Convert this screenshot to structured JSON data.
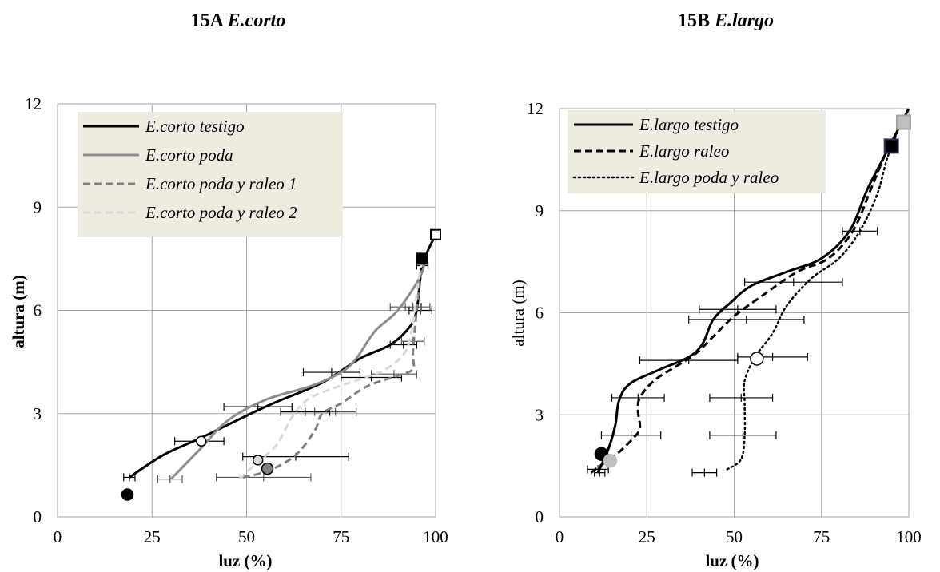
{
  "chart_data": [
    {
      "type": "line",
      "title_prefix": "15A",
      "title_species": "E.corto",
      "xlabel": "luz (%)",
      "ylabel": "altura (m)",
      "xlim": [
        0,
        100
      ],
      "ylim": [
        0,
        12
      ],
      "xticks": [
        "0",
        "25",
        "50",
        "75",
        "100"
      ],
      "yticks": [
        "0",
        "3",
        "6",
        "9",
        "12"
      ],
      "grid": true,
      "legend_position": "top-left",
      "series": [
        {
          "name": "E.corto testigo",
          "color": "#000000",
          "dash": "solid",
          "width": 3,
          "line": [
            [
              19,
              1.15
            ],
            [
              28,
              1.8
            ],
            [
              38,
              2.3
            ],
            [
              55,
              3.2
            ],
            [
              70,
              3.9
            ],
            [
              80,
              4.6
            ],
            [
              88,
              5.0
            ],
            [
              93,
              5.5
            ],
            [
              95,
              6.0
            ],
            [
              96.5,
              7.3
            ],
            [
              100,
              8.2
            ]
          ],
          "points": [
            {
              "x": 18.5,
              "y": 0.65,
              "marker": "circle",
              "fill": "#000000",
              "stroke": "#000000",
              "r": 7
            },
            {
              "x": 38,
              "y": 2.2,
              "marker": "circle",
              "fill": "#ffffff",
              "stroke": "#000000",
              "r": 6
            },
            {
              "x": 96.5,
              "y": 7.5,
              "marker": "square",
              "fill": "#000000",
              "stroke": "#000000",
              "size": 13
            },
            {
              "x": 100,
              "y": 8.2,
              "marker": "square",
              "fill": "#ffffff",
              "stroke": "#000000",
              "size": 12
            }
          ],
          "errorbars": [
            {
              "y": 1.15,
              "xmin": 17.5,
              "xmax": 20.5
            },
            {
              "y": 2.2,
              "xmin": 31,
              "xmax": 44
            },
            {
              "y": 3.2,
              "xmin": 44,
              "xmax": 62
            },
            {
              "y": 4.2,
              "xmin": 65,
              "xmax": 80
            },
            {
              "y": 5.0,
              "xmin": 88,
              "xmax": 95
            },
            {
              "y": 6.0,
              "xmin": 93,
              "xmax": 99
            },
            {
              "y": 7.3,
              "xmin": 95,
              "xmax": 98
            }
          ]
        },
        {
          "name": "E.corto poda",
          "color": "#8c8c8c",
          "dash": "solid",
          "width": 3,
          "line": [
            [
              30,
              1.1
            ],
            [
              38,
              2.0
            ],
            [
              45,
              2.8
            ],
            [
              55,
              3.4
            ],
            [
              67,
              3.8
            ],
            [
              75,
              4.2
            ],
            [
              79,
              4.6
            ],
            [
              84,
              5.4
            ],
            [
              90,
              6.0
            ],
            [
              96,
              7.0
            ],
            [
              97.5,
              7.6
            ]
          ],
          "points": [],
          "errorbars": [
            {
              "y": 1.1,
              "xmin": 26.5,
              "xmax": 33
            },
            {
              "y": 6.1,
              "xmin": 88,
              "xmax": 96
            }
          ]
        },
        {
          "name": "E.corto poda y raleo 1",
          "color": "#808080",
          "dash": "dashed",
          "width": 3,
          "line": [
            [
              49,
              1.15
            ],
            [
              56,
              1.35
            ],
            [
              63,
              1.8
            ],
            [
              68,
              2.5
            ],
            [
              70,
              3.0
            ],
            [
              75,
              3.3
            ],
            [
              82,
              3.8
            ],
            [
              90,
              4.1
            ],
            [
              94,
              4.3
            ],
            [
              94,
              4.8
            ],
            [
              95,
              6.0
            ],
            [
              96,
              7.0
            ],
            [
              97,
              7.6
            ]
          ],
          "points": [
            {
              "x": 55.5,
              "y": 1.4,
              "marker": "circle",
              "fill": "#808080",
              "stroke": "#000000",
              "r": 7
            }
          ],
          "errorbars": [
            {
              "y": 1.15,
              "xmin": 42,
              "xmax": 67
            },
            {
              "y": 3.05,
              "xmin": 68,
              "xmax": 79
            },
            {
              "y": 4.15,
              "xmin": 83,
              "xmax": 95
            },
            {
              "y": 5.1,
              "xmin": 91,
              "xmax": 97
            },
            {
              "y": 6.1,
              "xmin": 94,
              "xmax": 98.5
            }
          ]
        },
        {
          "name": "E.corto poda y raleo 2",
          "color": "#d9d9d9",
          "dash": "dashed",
          "width": 3,
          "line": [
            [
              48,
              1.1
            ],
            [
              53,
              1.6
            ],
            [
              58,
              2.1
            ],
            [
              62,
              2.9
            ],
            [
              66,
              3.4
            ],
            [
              72,
              3.7
            ],
            [
              80,
              4.0
            ],
            [
              87,
              4.3
            ],
            [
              92,
              4.8
            ],
            [
              94,
              5.6
            ],
            [
              95,
              6.5
            ],
            [
              96,
              7.2
            ],
            [
              97,
              7.6
            ]
          ],
          "points": [
            {
              "x": 53,
              "y": 1.65,
              "marker": "circle",
              "fill": "#d9d9d9",
              "stroke": "#000000",
              "r": 6
            }
          ],
          "errorbars": [
            {
              "y": 1.75,
              "xmin": 49,
              "xmax": 77
            },
            {
              "y": 3.05,
              "xmin": 59,
              "xmax": 72
            },
            {
              "y": 4.05,
              "xmin": 75,
              "xmax": 91
            }
          ]
        }
      ]
    },
    {
      "type": "line",
      "title_prefix": "15B",
      "title_species": "E.largo",
      "xlabel": "luz (%)",
      "ylabel": "altura (m)",
      "xlim": [
        0,
        100
      ],
      "ylim": [
        0,
        12
      ],
      "xticks": [
        "0",
        "25",
        "50",
        "75",
        "100"
      ],
      "yticks": [
        "0",
        "3",
        "6",
        "9",
        "12"
      ],
      "grid": true,
      "legend_position": "top-left",
      "series": [
        {
          "name": "E.largo testigo",
          "color": "#000000",
          "dash": "solid",
          "width": 3,
          "line": [
            [
              11,
              1.3
            ],
            [
              14,
              2.0
            ],
            [
              16,
              2.7
            ],
            [
              17,
              3.4
            ],
            [
              20,
              3.9
            ],
            [
              28,
              4.3
            ],
            [
              37,
              4.7
            ],
            [
              41,
              5.1
            ],
            [
              44,
              5.8
            ],
            [
              49,
              6.3
            ],
            [
              55,
              6.8
            ],
            [
              65,
              7.2
            ],
            [
              75,
              7.6
            ],
            [
              83,
              8.4
            ],
            [
              88,
              9.6
            ],
            [
              93,
              10.6
            ],
            [
              97,
              11.4
            ],
            [
              100,
              12.0
            ]
          ],
          "points": [
            {
              "x": 12,
              "y": 1.85,
              "marker": "circle",
              "fill": "#000000",
              "stroke": "#000000",
              "r": 8
            },
            {
              "x": 95,
              "y": 10.9,
              "marker": "square",
              "fill": "#000000",
              "stroke": "#3a2d5c",
              "size": 17
            }
          ],
          "errorbars": [
            {
              "y": 1.3,
              "xmin": 10,
              "xmax": 13
            },
            {
              "y": 3.5,
              "xmin": 15,
              "xmax": 30
            },
            {
              "y": 4.6,
              "xmin": 23,
              "xmax": 51
            },
            {
              "y": 5.8,
              "xmin": 37,
              "xmax": 70
            },
            {
              "y": 6.9,
              "xmin": 53,
              "xmax": 81
            },
            {
              "y": 8.4,
              "xmin": 81,
              "xmax": 91
            }
          ]
        },
        {
          "name": "E.largo raleo",
          "color": "#000000",
          "dash": "dashed",
          "width": 3,
          "line": [
            [
              9,
              1.3
            ],
            [
              13,
              1.6
            ],
            [
              17,
              1.9
            ],
            [
              21,
              2.3
            ],
            [
              23,
              2.6
            ],
            [
              22.5,
              3.1
            ],
            [
              23,
              3.5
            ],
            [
              27,
              4.0
            ],
            [
              33,
              4.4
            ],
            [
              39,
              4.8
            ],
            [
              44,
              5.3
            ],
            [
              50,
              5.9
            ],
            [
              58,
              6.5
            ],
            [
              68,
              7.2
            ],
            [
              77,
              7.6
            ],
            [
              84,
              8.4
            ],
            [
              89,
              9.6
            ],
            [
              93,
              10.6
            ],
            [
              95,
              11.0
            ]
          ],
          "points": [
            {
              "x": 14.5,
              "y": 1.65,
              "marker": "circle",
              "fill": "#bfbfbf",
              "stroke": "#bfbfbf",
              "r": 8
            }
          ],
          "errorbars": [
            {
              "y": 1.4,
              "xmin": 8,
              "xmax": 14
            },
            {
              "y": 2.4,
              "xmin": 12,
              "xmax": 29
            },
            {
              "y": 6.1,
              "xmin": 40,
              "xmax": 62
            }
          ]
        },
        {
          "name": "E.largo poda y raleo",
          "color": "#000000",
          "dash": "dotted",
          "width": 2.5,
          "line": [
            [
              48,
              1.4
            ],
            [
              52,
              1.7
            ],
            [
              53,
              2.4
            ],
            [
              53,
              3.3
            ],
            [
              53,
              4.0
            ],
            [
              56,
              4.7
            ],
            [
              61,
              5.4
            ],
            [
              65,
              6.2
            ],
            [
              72,
              7.0
            ],
            [
              80,
              7.6
            ],
            [
              86,
              8.4
            ],
            [
              91,
              9.5
            ],
            [
              94,
              10.6
            ],
            [
              98,
              11.6
            ],
            [
              100,
              12.0
            ]
          ],
          "points": [
            {
              "x": 56.5,
              "y": 4.65,
              "marker": "circle",
              "fill": "#ffffff",
              "stroke": "#000000",
              "r": 8
            },
            {
              "x": 98.5,
              "y": 11.6,
              "marker": "square",
              "fill": "#bfbfbf",
              "stroke": "#a6a6a6",
              "size": 17
            }
          ],
          "errorbars": [
            {
              "y": 1.3,
              "xmin": 38,
              "xmax": 45
            },
            {
              "y": 2.4,
              "xmin": 43,
              "xmax": 62
            },
            {
              "y": 3.5,
              "xmin": 43,
              "xmax": 61
            },
            {
              "y": 4.7,
              "xmin": 51,
              "xmax": 71
            }
          ]
        }
      ]
    }
  ]
}
